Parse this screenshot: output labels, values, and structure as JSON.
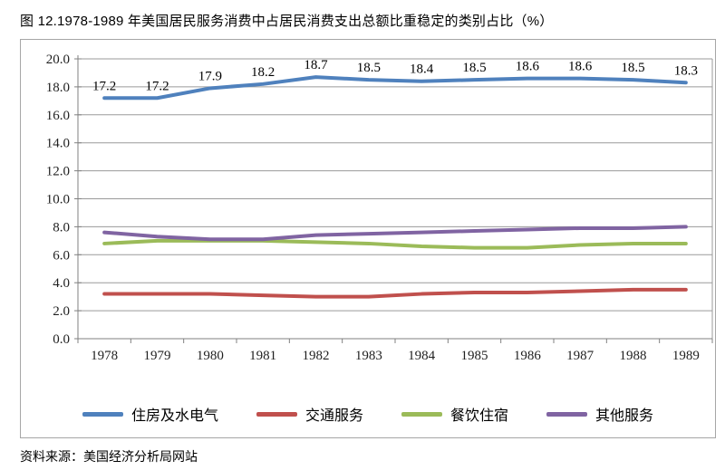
{
  "page": {
    "title": "图 12.1978-1989 年美国居民服务消费中占居民消费支出总额比重稳定的类别占比（%）",
    "source": "资料来源：美国经济分析局网站"
  },
  "chart_data": {
    "type": "line",
    "title": "图 12.1978-1989 年美国居民服务消费中占居民消费支出总额比重稳定的类别占比（%）",
    "categories": [
      "1978",
      "1979",
      "1980",
      "1981",
      "1982",
      "1983",
      "1984",
      "1985",
      "1986",
      "1987",
      "1988",
      "1989"
    ],
    "xlabel": "",
    "ylabel": "",
    "ylim": [
      0,
      20
    ],
    "ytick_step": 2,
    "ytick_decimals": 1,
    "grid": true,
    "legend_position": "bottom",
    "series": [
      {
        "name": "住房及水电气",
        "color": "#4F81BD",
        "show_labels": true,
        "values": [
          17.2,
          17.2,
          17.9,
          18.2,
          18.7,
          18.5,
          18.4,
          18.5,
          18.6,
          18.6,
          18.5,
          18.3
        ]
      },
      {
        "name": "交通服务",
        "color": "#C0504D",
        "show_labels": false,
        "values": [
          3.2,
          3.2,
          3.2,
          3.1,
          3.0,
          3.0,
          3.2,
          3.3,
          3.3,
          3.4,
          3.5,
          3.5
        ]
      },
      {
        "name": "餐饮住宿",
        "color": "#9BBB59",
        "show_labels": false,
        "values": [
          6.8,
          7.0,
          7.0,
          7.0,
          6.9,
          6.8,
          6.6,
          6.5,
          6.5,
          6.7,
          6.8,
          6.8
        ]
      },
      {
        "name": "其他服务",
        "color": "#8064A2",
        "show_labels": false,
        "values": [
          7.6,
          7.3,
          7.1,
          7.1,
          7.4,
          7.5,
          7.6,
          7.7,
          7.8,
          7.9,
          7.9,
          8.0
        ]
      }
    ]
  },
  "style": {
    "frame_border_color": "#a6a6a6",
    "grid_color": "#9a9a9a",
    "axis_color": "#808080",
    "tick_label_color": "#1f1f1f",
    "data_label_color": "#000000",
    "line_width": 4
  }
}
